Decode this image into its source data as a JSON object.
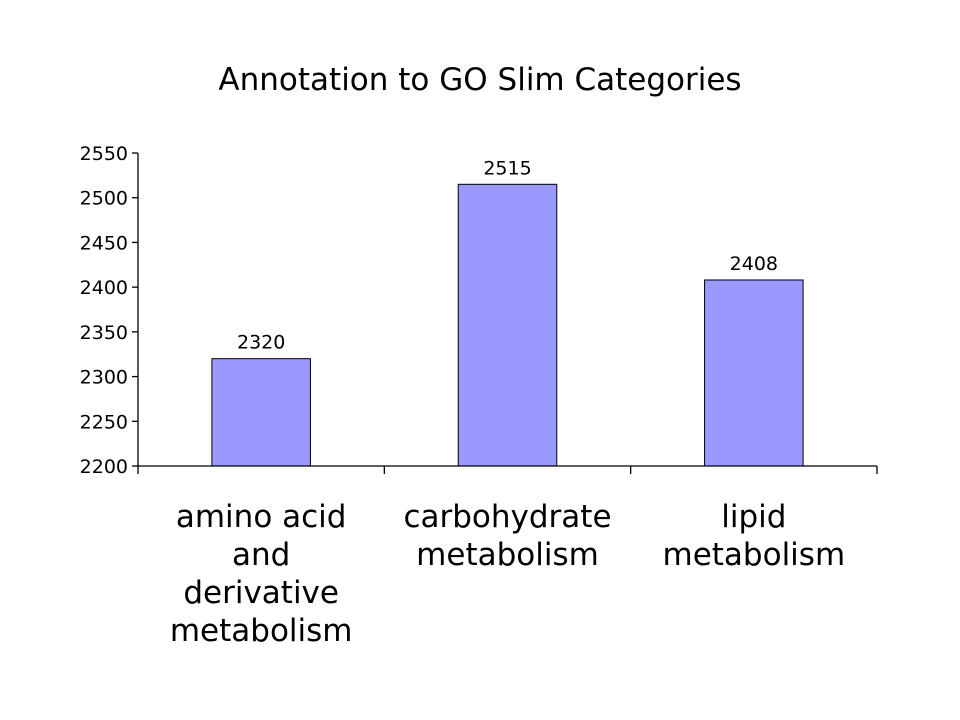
{
  "chart_data": {
    "type": "bar",
    "title": "Annotation to GO Slim Categories",
    "xlabel": "",
    "ylabel": "",
    "categories": [
      [
        "amino acid",
        "and",
        "derivative",
        "metabolism"
      ],
      [
        "carbohydrate",
        "metabolism"
      ],
      [
        "lipid",
        "metabolism"
      ]
    ],
    "values": [
      2320,
      2515,
      2408
    ],
    "data_labels": [
      "2320",
      "2515",
      "2408"
    ],
    "ylim": [
      2200,
      2550
    ],
    "yticks": [
      2200,
      2250,
      2300,
      2350,
      2400,
      2450,
      2500,
      2550
    ],
    "grid": false,
    "legend": "none",
    "bar_color": "#9999ff"
  }
}
